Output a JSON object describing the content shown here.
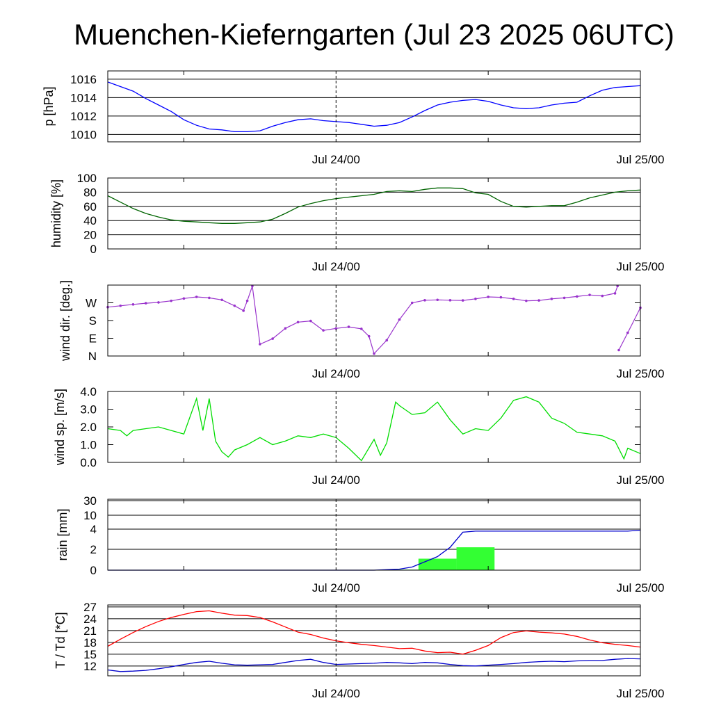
{
  "title": "Muenchen-Kieferngarten (Jul 23 2025 06UTC)",
  "chart_data": [
    {
      "id": "pressure",
      "type": "line",
      "ylabel": "p [hPa]",
      "ylim": [
        1009.2,
        1016.9
      ],
      "yticks": [
        1010,
        1012,
        1014,
        1016
      ],
      "ytick_labels": [
        "1010",
        "1012",
        "1014",
        "1016"
      ],
      "grid_y": true,
      "xtick_labels": [
        "Jul 24/00",
        "Jul 25/00"
      ],
      "colors": [
        "#0000ff"
      ],
      "series": [
        {
          "x": [
            0,
            1,
            2,
            3,
            4,
            5,
            6,
            7,
            8,
            9,
            10,
            11,
            12,
            13,
            14,
            15,
            16,
            17,
            18,
            19,
            20,
            21,
            22,
            23,
            24,
            25,
            26,
            27,
            28,
            29,
            30,
            31,
            32,
            33,
            34,
            35,
            36,
            37,
            38,
            39,
            40,
            41,
            42
          ],
          "values": [
            1015.7,
            1015.2,
            1014.7,
            1013.9,
            1013.2,
            1012.5,
            1011.6,
            1011.0,
            1010.6,
            1010.5,
            1010.3,
            1010.3,
            1010.4,
            1010.9,
            1011.3,
            1011.6,
            1011.7,
            1011.5,
            1011.4,
            1011.3,
            1011.1,
            1010.9,
            1011.0,
            1011.3,
            1011.9,
            1012.6,
            1013.2,
            1013.5,
            1013.7,
            1013.8,
            1013.6,
            1013.2,
            1012.9,
            1012.8,
            1012.9,
            1013.2,
            1013.4,
            1013.5,
            1014.2,
            1014.8,
            1015.1,
            1015.2,
            1015.3
          ]
        }
      ]
    },
    {
      "id": "humidity",
      "type": "line",
      "ylabel": "humidity [%]",
      "ylim": [
        0,
        100
      ],
      "yticks": [
        0,
        20,
        40,
        60,
        80,
        100
      ],
      "ytick_labels": [
        "0",
        "20",
        "40",
        "60",
        "80",
        "100"
      ],
      "grid_y": true,
      "xtick_labels": [
        "Jul 24/00",
        "Jul 25/00"
      ],
      "colors": [
        "#006400"
      ],
      "series": [
        {
          "x": [
            0,
            1,
            2,
            3,
            4,
            5,
            6,
            7,
            8,
            9,
            10,
            11,
            12,
            13,
            14,
            15,
            16,
            17,
            18,
            19,
            20,
            21,
            22,
            23,
            24,
            25,
            26,
            27,
            28,
            29,
            30,
            31,
            32,
            33,
            34,
            35,
            36,
            37,
            38,
            39,
            40,
            41,
            42
          ],
          "values": [
            75,
            66,
            57,
            50,
            45,
            41,
            39,
            38,
            37,
            36,
            36,
            37,
            38,
            42,
            50,
            59,
            64,
            68,
            71,
            73,
            75,
            77,
            81,
            82,
            81,
            84,
            86,
            86,
            85,
            79,
            77,
            67,
            60,
            59,
            60,
            61,
            61,
            66,
            72,
            76,
            80,
            82,
            83
          ]
        }
      ]
    },
    {
      "id": "wind-direction",
      "type": "scatter",
      "ylabel": "wind dir. [deg.]",
      "ylim": [
        0,
        360
      ],
      "yticks": [
        0,
        90,
        180,
        270
      ],
      "ytick_labels": [
        "N",
        "E",
        "S",
        "W"
      ],
      "grid_y": false,
      "xtick_labels": [
        "Jul 24/00",
        "Jul 25/00"
      ],
      "colors": [
        "#9933cc"
      ],
      "series": [
        {
          "x": [
            0,
            1,
            2,
            3,
            4,
            5,
            6,
            7,
            8,
            9,
            10,
            10.7,
            11,
            11.4,
            12,
            13,
            14,
            15,
            16,
            17,
            18,
            19,
            20,
            20.6,
            21,
            22,
            23,
            24,
            25,
            26,
            27,
            28,
            29,
            30,
            31,
            32,
            33,
            34,
            35,
            36,
            37,
            38,
            39,
            40,
            40.2
          ],
          "values": [
            248,
            255,
            262,
            268,
            272,
            280,
            292,
            300,
            295,
            285,
            255,
            230,
            280,
            355,
            60,
            88,
            140,
            172,
            178,
            130,
            140,
            148,
            138,
            100,
            12,
            80,
            185,
            270,
            283,
            285,
            283,
            282,
            290,
            300,
            298,
            290,
            280,
            282,
            290,
            295,
            302,
            310,
            305,
            318,
            355
          ]
        },
        {
          "x": [
            40.3,
            41,
            42
          ],
          "values": [
            30,
            118,
            245
          ]
        }
      ]
    },
    {
      "id": "wind-speed",
      "type": "line",
      "ylabel": "wind sp. [m/s]",
      "ylim": [
        0,
        4
      ],
      "yticks": [
        0,
        1,
        2,
        3,
        4
      ],
      "ytick_labels": [
        "0.0",
        "1.0",
        "2.0",
        "3.0",
        "4.0"
      ],
      "grid_y": false,
      "xtick_labels": [
        "Jul 24/00",
        "Jul 25/00"
      ],
      "colors": [
        "#00dd00"
      ],
      "series": [
        {
          "x": [
            0,
            1,
            1.5,
            2,
            3,
            4,
            5,
            6,
            7,
            7.5,
            8,
            8.5,
            9,
            9.5,
            10,
            11,
            12,
            13,
            14,
            15,
            16,
            17,
            18,
            19,
            20,
            21,
            21.5,
            22,
            22.7,
            23,
            24,
            25,
            26,
            27,
            28,
            29,
            30,
            31,
            32,
            33,
            34,
            35,
            36,
            37,
            38,
            39,
            40,
            40.7,
            41,
            42
          ],
          "values": [
            1.9,
            1.8,
            1.5,
            1.8,
            1.9,
            2.0,
            1.8,
            1.6,
            3.6,
            1.8,
            3.6,
            1.2,
            0.6,
            0.3,
            0.7,
            1.0,
            1.4,
            1.0,
            1.2,
            1.5,
            1.4,
            1.6,
            1.4,
            0.8,
            0.1,
            1.3,
            0.4,
            1.1,
            3.4,
            3.2,
            2.7,
            2.8,
            3.4,
            2.4,
            1.6,
            1.9,
            1.8,
            2.5,
            3.5,
            3.7,
            3.4,
            2.5,
            2.2,
            1.7,
            1.6,
            1.5,
            1.2,
            0.2,
            0.8,
            0.5
          ]
        }
      ]
    },
    {
      "id": "rain",
      "type": "bar",
      "ylabel": "rain [mm]",
      "ylim": [
        0,
        30
      ],
      "yticks": [
        0,
        2,
        4,
        10,
        30
      ],
      "ytick_labels": [
        "0",
        "2",
        "4",
        "10",
        "30"
      ],
      "grid_y": true,
      "xtick_labels": [
        "Jul 24/00",
        "Jul 25/00"
      ],
      "colors": [
        "#33ff33",
        "#0000cc"
      ],
      "bars": [
        {
          "x0": 21.5,
          "x1": 24.5,
          "value": 0.05
        },
        {
          "x0": 24.5,
          "x1": 27.5,
          "value": 1.1
        },
        {
          "x0": 27.5,
          "x1": 30.5,
          "value": 2.2
        }
      ],
      "series": [
        {
          "x": [
            0,
            21,
            22,
            23,
            24,
            25,
            26,
            27,
            28,
            29,
            30,
            31,
            32,
            33,
            34,
            35,
            36,
            37,
            38,
            39,
            40,
            41,
            42
          ],
          "values": [
            0,
            0,
            0.05,
            0.1,
            0.3,
            0.8,
            1.3,
            2.2,
            3.7,
            3.8,
            3.8,
            3.8,
            3.8,
            3.8,
            3.8,
            3.8,
            3.8,
            3.8,
            3.8,
            3.8,
            3.8,
            3.8,
            3.9
          ]
        }
      ]
    },
    {
      "id": "temperature",
      "type": "line",
      "ylabel": "T / Td [*C]",
      "ylim": [
        9.5,
        27.5
      ],
      "yticks": [
        12,
        15,
        18,
        21,
        24,
        27
      ],
      "ytick_labels": [
        "12",
        "15",
        "18",
        "21",
        "24",
        "27"
      ],
      "grid_y": true,
      "xtick_labels": [
        "Jul 24/00",
        "Jul 25/00"
      ],
      "colors": [
        "#ff0000",
        "#0000cc"
      ],
      "series": [
        {
          "x": [
            0,
            1,
            2,
            3,
            4,
            5,
            6,
            7,
            8,
            9,
            10,
            11,
            12,
            13,
            14,
            15,
            16,
            17,
            18,
            19,
            20,
            21,
            22,
            23,
            24,
            25,
            26,
            27,
            28,
            29,
            30,
            31,
            32,
            33,
            34,
            35,
            36,
            37,
            38,
            39,
            40,
            41,
            42
          ],
          "values": [
            17.0,
            18.8,
            20.5,
            22.0,
            23.3,
            24.3,
            25.1,
            25.8,
            26.0,
            25.4,
            24.9,
            24.8,
            24.3,
            23.2,
            21.9,
            20.6,
            20.0,
            19.1,
            18.4,
            17.9,
            17.5,
            17.2,
            16.8,
            16.4,
            16.5,
            15.8,
            15.4,
            15.5,
            15.0,
            16.0,
            17.2,
            19.2,
            20.5,
            20.9,
            20.6,
            20.4,
            20.1,
            19.5,
            18.6,
            17.9,
            17.5,
            17.2,
            16.8
          ]
        },
        {
          "x": [
            0,
            1,
            2,
            3,
            4,
            5,
            6,
            7,
            8,
            9,
            10,
            11,
            12,
            13,
            14,
            15,
            16,
            17,
            18,
            19,
            20,
            21,
            22,
            23,
            24,
            25,
            26,
            27,
            28,
            29,
            30,
            31,
            32,
            33,
            34,
            35,
            36,
            37,
            38,
            39,
            40,
            41,
            42
          ],
          "values": [
            11.0,
            10.6,
            10.7,
            10.9,
            11.3,
            11.8,
            12.4,
            12.9,
            13.2,
            12.7,
            12.3,
            12.2,
            12.3,
            12.4,
            12.9,
            13.4,
            13.7,
            12.9,
            12.4,
            12.5,
            12.6,
            12.7,
            12.9,
            12.8,
            12.6,
            12.9,
            12.8,
            12.4,
            12.1,
            12.0,
            12.2,
            12.4,
            12.6,
            12.9,
            13.1,
            13.2,
            13.1,
            13.3,
            13.4,
            13.4,
            13.7,
            13.9,
            13.8
          ]
        }
      ]
    }
  ]
}
